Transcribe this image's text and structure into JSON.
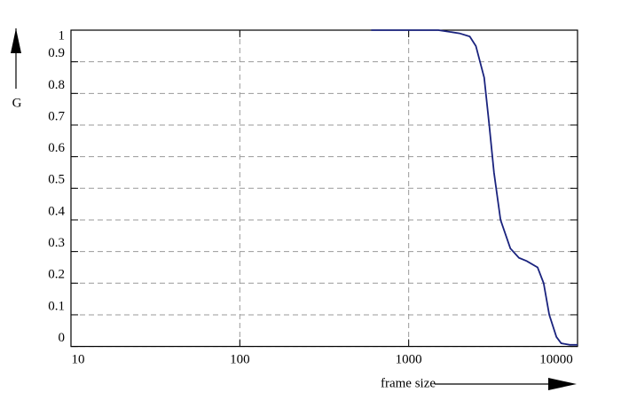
{
  "chart_data": {
    "type": "line",
    "x_label": "frame size",
    "y_label": "G",
    "log_x": true,
    "grid": true,
    "xlim": [
      10,
      10000
    ],
    "xticks": [
      10,
      100,
      1000,
      10000
    ],
    "ylim": [
      0,
      1
    ],
    "yticks": [
      0,
      0.1,
      0.2,
      0.3,
      0.4,
      0.5,
      0.6,
      0.7,
      0.8,
      0.9,
      1
    ],
    "series": [
      {
        "color": "#1a237e",
        "x": [
          600,
          1000,
          1500,
          2000,
          2300,
          2500,
          2800,
          3000,
          3200,
          3500,
          4000,
          4500,
          5000,
          5800,
          6300,
          6800,
          7500,
          8000,
          9000,
          10000
        ],
        "values": [
          1,
          1,
          1,
          0.99,
          0.98,
          0.95,
          0.85,
          0.7,
          0.55,
          0.4,
          0.31,
          0.28,
          0.27,
          0.25,
          0.2,
          0.1,
          0.03,
          0.01,
          0.005,
          0.005
        ]
      }
    ]
  }
}
